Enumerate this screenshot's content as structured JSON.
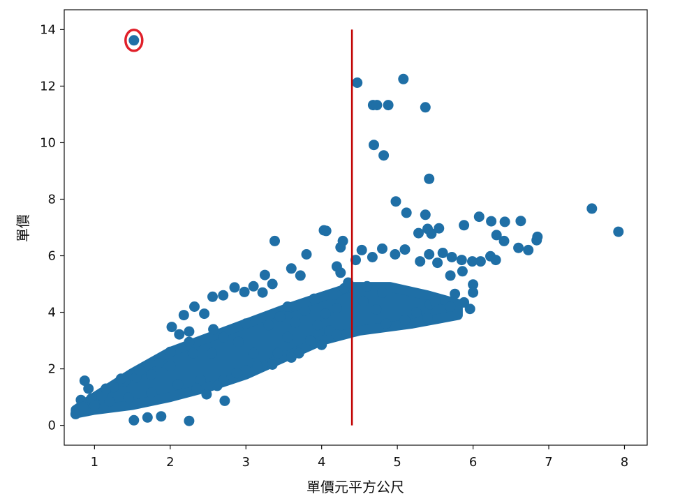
{
  "chart_data": {
    "type": "scatter",
    "title": "",
    "xlabel": "單價元平方公尺",
    "ylabel": "單價",
    "xlim": [
      0.6,
      8.3
    ],
    "ylim": [
      -0.7,
      14.7
    ],
    "xticks": [
      1,
      2,
      3,
      4,
      5,
      6,
      7,
      8
    ],
    "yticks": [
      0,
      2,
      4,
      6,
      8,
      10,
      12,
      14
    ],
    "grid": false,
    "legend": "none",
    "colors": {
      "points": "#1f6fa6",
      "vline": "#c00000",
      "highlight": "#e0202a"
    },
    "vertical_line": {
      "x": 4.4,
      "y_range": [
        0,
        14
      ]
    },
    "highlighted_point": {
      "x": 1.52,
      "y": 13.62
    },
    "series": [
      {
        "values": [
          [
            1.52,
            13.62
          ],
          [
            4.47,
            12.12
          ],
          [
            5.08,
            12.25
          ],
          [
            4.68,
            11.33
          ],
          [
            4.73,
            11.33
          ],
          [
            4.88,
            11.33
          ],
          [
            5.37,
            11.25
          ],
          [
            4.69,
            9.92
          ],
          [
            4.82,
            9.55
          ],
          [
            5.42,
            8.72
          ],
          [
            4.98,
            7.92
          ],
          [
            5.12,
            7.52
          ],
          [
            5.37,
            7.45
          ],
          [
            7.57,
            7.67
          ],
          [
            7.92,
            6.85
          ],
          [
            6.08,
            7.38
          ],
          [
            6.24,
            7.22
          ],
          [
            6.42,
            7.2
          ],
          [
            6.63,
            7.23
          ],
          [
            6.85,
            6.67
          ],
          [
            6.84,
            6.55
          ],
          [
            6.6,
            6.28
          ],
          [
            6.73,
            6.2
          ],
          [
            6.41,
            6.52
          ],
          [
            6.31,
            6.73
          ],
          [
            5.88,
            7.08
          ],
          [
            5.55,
            6.97
          ],
          [
            5.28,
            6.8
          ],
          [
            5.4,
            6.95
          ],
          [
            5.45,
            6.78
          ],
          [
            5.1,
            6.22
          ],
          [
            4.8,
            6.25
          ],
          [
            4.53,
            6.2
          ],
          [
            4.45,
            5.85
          ],
          [
            4.67,
            5.95
          ],
          [
            4.97,
            6.05
          ],
          [
            5.42,
            6.05
          ],
          [
            5.6,
            6.1
          ],
          [
            5.72,
            5.95
          ],
          [
            5.85,
            5.85
          ],
          [
            5.53,
            5.75
          ],
          [
            5.3,
            5.8
          ],
          [
            5.99,
            5.8
          ],
          [
            6.1,
            5.8
          ],
          [
            6.23,
            5.98
          ],
          [
            6.3,
            5.85
          ],
          [
            5.7,
            5.3
          ],
          [
            5.86,
            5.45
          ],
          [
            6.0,
            4.98
          ],
          [
            5.76,
            4.65
          ],
          [
            6.0,
            4.7
          ],
          [
            5.7,
            4.2
          ],
          [
            5.96,
            4.12
          ],
          [
            5.88,
            4.35
          ],
          [
            5.43,
            4.28
          ],
          [
            5.25,
            4.0
          ],
          [
            5.5,
            4.4
          ],
          [
            4.8,
            4.7
          ],
          [
            4.6,
            4.92
          ],
          [
            4.2,
            4.15
          ],
          [
            4.05,
            3.95
          ],
          [
            4.3,
            4.85
          ],
          [
            4.16,
            4.62
          ],
          [
            3.38,
            6.52
          ],
          [
            3.8,
            6.05
          ],
          [
            4.03,
            6.9
          ],
          [
            4.06,
            6.88
          ],
          [
            4.25,
            6.3
          ],
          [
            4.28,
            6.52
          ],
          [
            4.2,
            5.62
          ],
          [
            3.6,
            5.55
          ],
          [
            3.72,
            5.3
          ],
          [
            3.25,
            5.32
          ],
          [
            3.35,
            5.0
          ],
          [
            3.1,
            4.92
          ],
          [
            3.22,
            4.7
          ],
          [
            2.85,
            4.88
          ],
          [
            2.98,
            4.72
          ],
          [
            2.7,
            4.6
          ],
          [
            2.56,
            4.55
          ],
          [
            2.45,
            3.95
          ],
          [
            2.32,
            4.2
          ],
          [
            2.18,
            3.9
          ],
          [
            2.02,
            3.48
          ],
          [
            2.12,
            3.22
          ],
          [
            2.25,
            3.32
          ],
          [
            2.57,
            3.4
          ],
          [
            2.7,
            3.12
          ],
          [
            3.0,
            3.6
          ],
          [
            3.55,
            3.12
          ],
          [
            3.85,
            3.0
          ],
          [
            4.1,
            3.35
          ],
          [
            3.65,
            3.65
          ],
          [
            3.45,
            3.85
          ],
          [
            3.3,
            3.55
          ],
          [
            2.9,
            2.95
          ],
          [
            3.1,
            2.55
          ],
          [
            2.55,
            2.55
          ],
          [
            2.3,
            2.55
          ],
          [
            2.0,
            2.1
          ],
          [
            1.75,
            1.8
          ],
          [
            1.55,
            1.7
          ],
          [
            1.4,
            1.55
          ],
          [
            1.25,
            1.35
          ],
          [
            1.1,
            1.05
          ],
          [
            0.96,
            0.95
          ],
          [
            0.92,
            1.3
          ],
          [
            0.87,
            1.58
          ],
          [
            0.82,
            0.9
          ],
          [
            0.75,
            0.4
          ],
          [
            0.8,
            0.55
          ],
          [
            0.85,
            0.65
          ],
          [
            1.0,
            0.7
          ],
          [
            1.2,
            0.85
          ],
          [
            1.45,
            0.98
          ],
          [
            1.75,
            1.15
          ],
          [
            2.1,
            1.45
          ],
          [
            2.4,
            1.6
          ],
          [
            2.7,
            1.6
          ],
          [
            3.0,
            1.95
          ],
          [
            3.35,
            2.15
          ],
          [
            3.7,
            2.55
          ],
          [
            4.0,
            2.85
          ],
          [
            4.2,
            3.2
          ],
          [
            2.0,
            2.6
          ],
          [
            2.25,
            2.95
          ],
          [
            1.85,
            2.2
          ],
          [
            1.6,
            1.95
          ],
          [
            1.35,
            1.65
          ],
          [
            1.15,
            1.3
          ],
          [
            3.55,
            4.2
          ],
          [
            3.9,
            4.48
          ],
          [
            4.25,
            5.4
          ],
          [
            4.35,
            5.05
          ],
          [
            4.55,
            4.4
          ],
          [
            4.72,
            4.1
          ],
          [
            4.85,
            3.6
          ],
          [
            5.1,
            3.72
          ],
          [
            5.4,
            3.8
          ],
          [
            3.95,
            3.55
          ],
          [
            3.78,
            4.05
          ],
          [
            1.52,
            0.18
          ],
          [
            1.7,
            0.28
          ],
          [
            1.88,
            0.32
          ],
          [
            2.25,
            0.16
          ],
          [
            2.72,
            0.87
          ],
          [
            2.35,
            1.3
          ],
          [
            2.48,
            1.1
          ],
          [
            2.62,
            1.4
          ],
          [
            2.88,
            1.85
          ],
          [
            3.15,
            2.1
          ],
          [
            3.42,
            2.55
          ],
          [
            3.6,
            2.4
          ]
        ]
      }
    ]
  }
}
